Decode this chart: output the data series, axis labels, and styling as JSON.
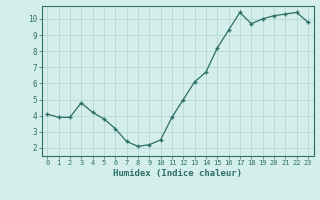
{
  "x": [
    0,
    1,
    2,
    3,
    4,
    5,
    6,
    7,
    8,
    9,
    10,
    11,
    12,
    13,
    14,
    15,
    16,
    17,
    18,
    19,
    20,
    21,
    22,
    23
  ],
  "y": [
    4.1,
    3.9,
    3.9,
    4.8,
    4.2,
    3.8,
    3.2,
    2.4,
    2.1,
    2.2,
    2.5,
    3.9,
    5.0,
    6.1,
    6.7,
    8.2,
    9.3,
    10.4,
    9.7,
    10.0,
    10.2,
    10.3,
    10.4,
    9.8
  ],
  "xlabel": "Humidex (Indice chaleur)",
  "bg_color": "#d4eeec",
  "line_color": "#2d6e65",
  "grid_color": "#b8d8d5",
  "ylim": [
    1.5,
    10.8
  ],
  "xlim": [
    -0.5,
    23.5
  ],
  "yticks": [
    2,
    3,
    4,
    5,
    6,
    7,
    8,
    9,
    10
  ],
  "xtick_labels": [
    "0",
    "1",
    "2",
    "3",
    "4",
    "5",
    "6",
    "7",
    "8",
    "9",
    "10",
    "11",
    "12",
    "13",
    "14",
    "15",
    "16",
    "17",
    "18",
    "19",
    "20",
    "21",
    "22",
    "23"
  ],
  "spine_color": "#2d6e65",
  "xlabel_color": "#2d6e65",
  "tick_color": "#2d6e65",
  "title_color": "#2d6e65"
}
